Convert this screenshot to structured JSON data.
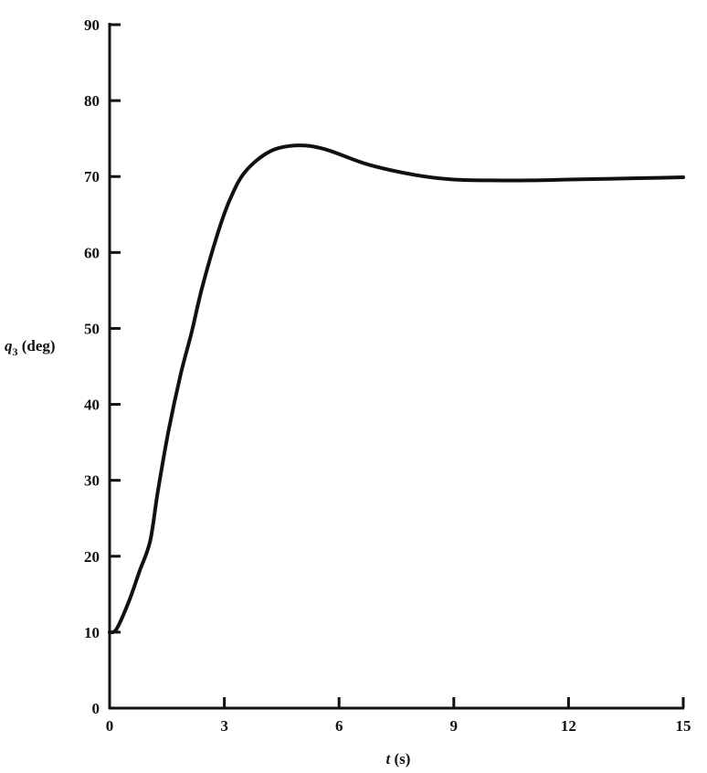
{
  "chart_data": {
    "type": "line",
    "title": "",
    "xlabel": "t (s)",
    "ylabel_var": "q",
    "ylabel_sub": "3",
    "ylabel_unit": " (deg)",
    "xlim": [
      0,
      15
    ],
    "ylim": [
      0,
      90
    ],
    "xticks": [
      0,
      3,
      6,
      9,
      12,
      15
    ],
    "yticks": [
      0,
      10,
      20,
      30,
      40,
      50,
      60,
      70,
      80,
      90
    ],
    "grid": false,
    "color": "#111111",
    "series": [
      {
        "x": [
          0,
          0.18,
          0.5,
          0.78,
          1.06,
          1.26,
          1.54,
          1.86,
          2.14,
          2.42,
          2.82,
          3.14,
          3.54,
          4.19,
          4.9,
          5.63,
          6.75,
          8,
          9,
          10,
          11,
          12,
          13,
          14,
          15
        ],
        "y": [
          10,
          10.4,
          14,
          18,
          22,
          28.5,
          36.5,
          44,
          49.4,
          55.4,
          62.4,
          66.9,
          70.6,
          73.3,
          74.1,
          73.6,
          71.6,
          70.2,
          69.6,
          69.5,
          69.5,
          69.6,
          69.7,
          69.8,
          69.9
        ]
      }
    ]
  }
}
